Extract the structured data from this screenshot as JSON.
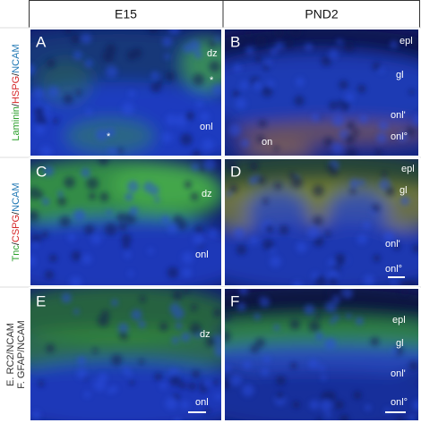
{
  "header": {
    "columns": [
      "E15",
      "PND2"
    ]
  },
  "rows": [
    {
      "label": [
        {
          "text": "Laminin"
        },
        {
          "text": "/"
        },
        {
          "text": "HSPG"
        },
        {
          "text": "/"
        },
        {
          "text": "NCAM"
        }
      ],
      "panels": [
        {
          "letter": "A",
          "annotations": [
            "dz",
            "*",
            "onl",
            "*"
          ]
        },
        {
          "letter": "B",
          "annotations": [
            "epl",
            "gl",
            "onl'",
            "onl°",
            "on"
          ]
        }
      ]
    },
    {
      "label": [
        {
          "text": "Tnc"
        },
        {
          "text": "/"
        },
        {
          "text": "CSPG"
        },
        {
          "text": "/"
        },
        {
          "text": "NCAM"
        }
      ],
      "panels": [
        {
          "letter": "C",
          "annotations": [
            "dz",
            "onl"
          ]
        },
        {
          "letter": "D",
          "annotations": [
            "epl",
            "gl",
            "onl'",
            "onl°"
          ]
        }
      ]
    },
    {
      "label": [
        {
          "text": "E. RC2/NCAM"
        },
        {
          "text": "F. GFAP/NCAM"
        }
      ],
      "panels": [
        {
          "letter": "E",
          "annotations": [
            "dz",
            "onl"
          ]
        },
        {
          "letter": "F",
          "annotations": [
            "epl",
            "gl",
            "onl'",
            "onl°"
          ]
        }
      ]
    }
  ]
}
